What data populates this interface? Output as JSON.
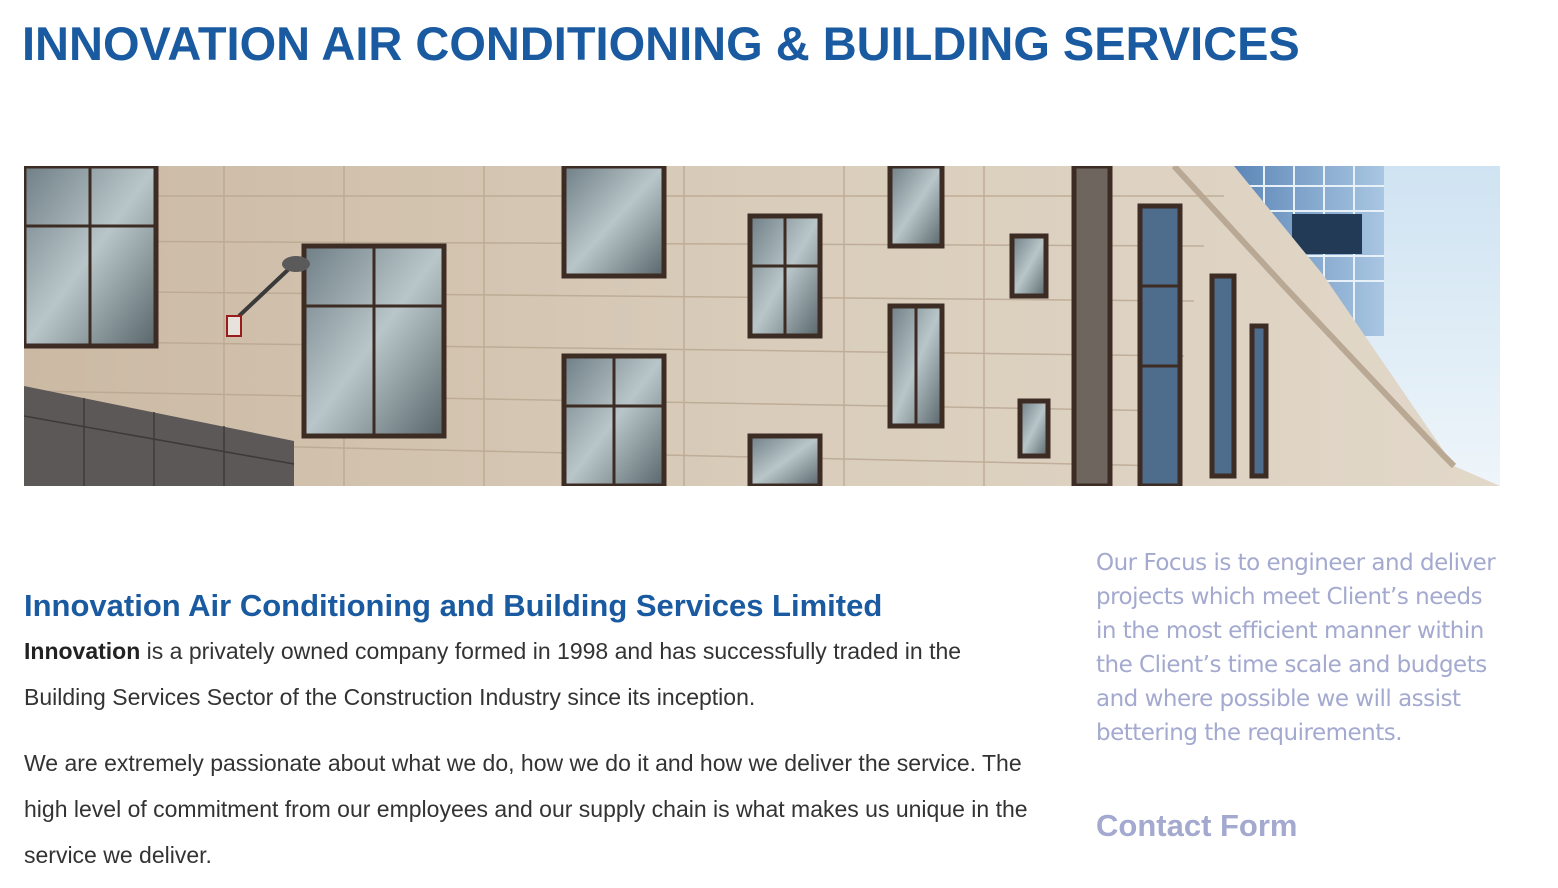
{
  "header": {
    "site_title": "INNOVATION AIR CONDITIONING & BUILDING SERVICES"
  },
  "hero": {
    "image_subject": "building-facade-photo"
  },
  "main": {
    "heading": "Innovation Air Conditioning and Building Services Limited",
    "intro_bold": "Innovation",
    "intro_rest": " is a privately owned company formed in 1998 and has successfully traded in the Building Services Sector of the Construction Industry since its inception.",
    "paragraph_2": "We are extremely passionate about what we do, how we do it and how we deliver the service. The high level of commitment from our employees and our supply chain is what makes us unique in the service we deliver."
  },
  "sidebar": {
    "focus_text": "Our Focus is to engineer and deliver projects which meet Client’s needs in the most efficient manner within the Client’s time scale and budgets and where possible we will assist bettering the requirements.",
    "contact_heading": "Contact Form"
  },
  "colors": {
    "primary_blue": "#1a5aa0",
    "sidebar_lavender": "#a3a9cf",
    "body_text": "#333333"
  }
}
